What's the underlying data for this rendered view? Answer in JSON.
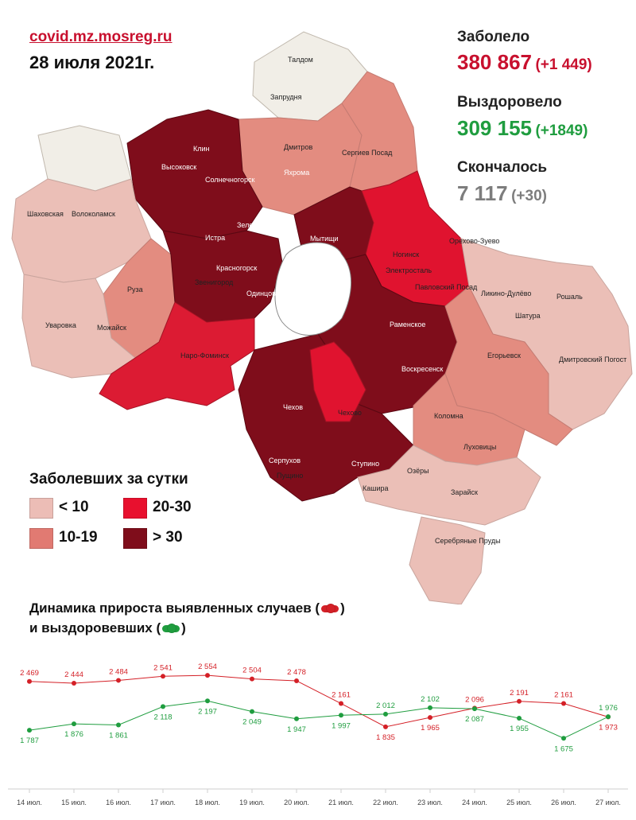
{
  "header": {
    "site": "covid.mz.mosreg.ru",
    "date": "28 июля 2021г."
  },
  "stats": {
    "infected_label": "Заболело",
    "infected_value": "380 867",
    "infected_delta": "(+1 449)",
    "recovered_label": "Выздоровело",
    "recovered_value": "309 155",
    "recovered_delta": "(+1849)",
    "deaths_label": "Скончалось",
    "deaths_value": "7 117",
    "deaths_delta": "(+30)"
  },
  "legend": {
    "title": "Заболевших за сутки",
    "items": [
      {
        "label": "< 10",
        "color": "#ecbdb6"
      },
      {
        "label": "20-30",
        "color": "#e8102e"
      },
      {
        "label": "10-19",
        "color": "#e17a72"
      },
      {
        "label": "> 30",
        "color": "#7f0d1b"
      }
    ]
  },
  "map": {
    "towns": [
      "Талдом",
      "Запрудня",
      "Дмитров",
      "Сергиев Посад",
      "Клин",
      "Высоковск",
      "Солнечногорск",
      "Яхрома",
      "Зеленоград",
      "Мытищи",
      "Шаховская",
      "Волоколамск",
      "Истра",
      "Красногорск",
      "Ногинск",
      "Электросталь",
      "Орехово-Зуево",
      "Павловский Посад",
      "Звенигород",
      "Одинцово",
      "Руза",
      "Ликино-Дулёво",
      "Рошаль",
      "Шатура",
      "Уваровка",
      "Можайск",
      "Раменское",
      "Наро-Фоминск",
      "Егорьевск",
      "Дмитровский Погост",
      "Воскресенск",
      "Чехов",
      "Чехово",
      "Коломна",
      "Луховицы",
      "Серпухов",
      "Ступино",
      "Пущино",
      "Озёры",
      "Кашира",
      "Зарайск",
      "Серебряные Пруды"
    ]
  },
  "dynamics": {
    "title_line1": "Динамика прироста выявленных случаев (",
    "title_line2": "и выздоровевших (",
    "close_paren": ")"
  },
  "chart_data": {
    "type": "line",
    "x": [
      "14 июл.",
      "15 июл.",
      "16 июл.",
      "17 июл.",
      "18 июл.",
      "19 июл.",
      "20 июл.",
      "21 июл.",
      "22 июл.",
      "23 июл.",
      "24 июл.",
      "25 июл.",
      "26 июл.",
      "27 июл."
    ],
    "series": [
      {
        "values": [
          2469,
          2444,
          2484,
          2541,
          2554,
          2504,
          2478,
          2161,
          1835,
          1965,
          2096,
          2191,
          2161,
          1973
        ],
        "labels": [
          "2 469",
          "2 444",
          "2 484",
          "2 541",
          "2 554",
          "2 504",
          "2 478",
          "2 161",
          "1 835",
          "1 965",
          "2 096",
          "2 191",
          "2 161",
          "1 973"
        ],
        "color": "#d42027"
      },
      {
        "values": [
          1787,
          1876,
          1861,
          2118,
          2197,
          2049,
          1947,
          1997,
          2012,
          2102,
          2087,
          1955,
          1675,
          1976
        ],
        "labels": [
          "1 787",
          "1 876",
          "1 861",
          "2 118",
          "2 197",
          "2 049",
          "1 947",
          "1 997",
          "2 012",
          "2 102",
          "2 087",
          "1 955",
          "1 675",
          "1 976"
        ],
        "color": "#1f9d3f"
      }
    ],
    "ylim": [
      1600,
      2600
    ],
    "grid": false
  }
}
